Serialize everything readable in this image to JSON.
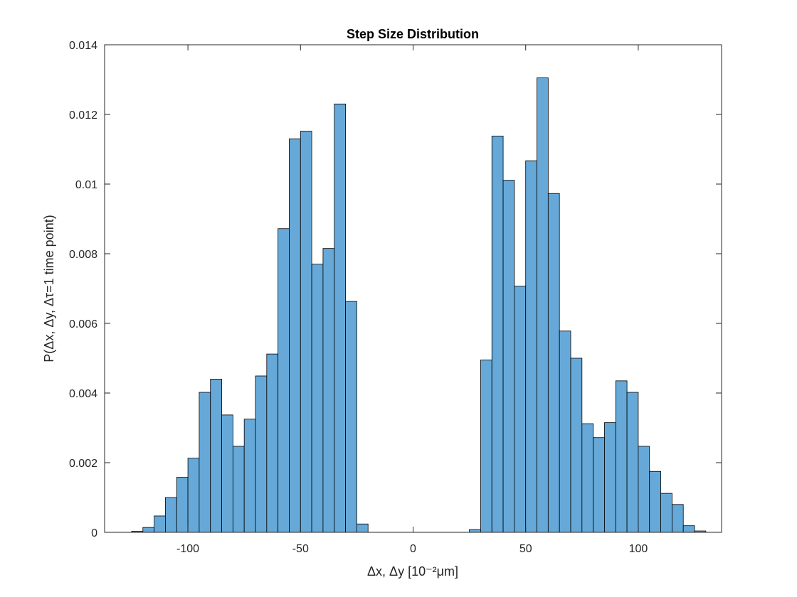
{
  "chart_data": {
    "type": "bar",
    "title": "Step Size Distribution",
    "xlabel": "Δx, Δy [10⁻²μm]",
    "ylabel": "P(Δx, Δy, Δτ=1 time point)",
    "xlim": [
      -137,
      137
    ],
    "ylim": [
      0,
      0.014
    ],
    "xticks": [
      -100,
      -50,
      0,
      50,
      100
    ],
    "yticks": [
      0,
      0.002,
      0.004,
      0.006,
      0.008,
      0.01,
      0.012,
      0.014
    ],
    "bin_width": 5,
    "bin_start": -125,
    "values": [
      3e-05,
      0.00014,
      0.00047,
      0.001,
      0.00158,
      0.00213,
      0.00402,
      0.0044,
      0.00337,
      0.00247,
      0.00325,
      0.00449,
      0.00512,
      0.00872,
      0.0113,
      0.01152,
      0.0077,
      0.00815,
      0.0123,
      0.00663,
      0.00024,
      0,
      0,
      0,
      0,
      0,
      0,
      0,
      0,
      0,
      8e-05,
      0.00495,
      0.01138,
      0.01011,
      0.00707,
      0.01067,
      0.01305,
      0.00973,
      0.00578,
      0.005,
      0.00312,
      0.00272,
      0.00315,
      0.00435,
      0.00402,
      0.00247,
      0.00175,
      0.00112,
      0.0008,
      0.00019,
      4e-05
    ],
    "bar_color": "#66A9D8",
    "edge_color": "#000000",
    "grid": false,
    "legend": "none"
  }
}
